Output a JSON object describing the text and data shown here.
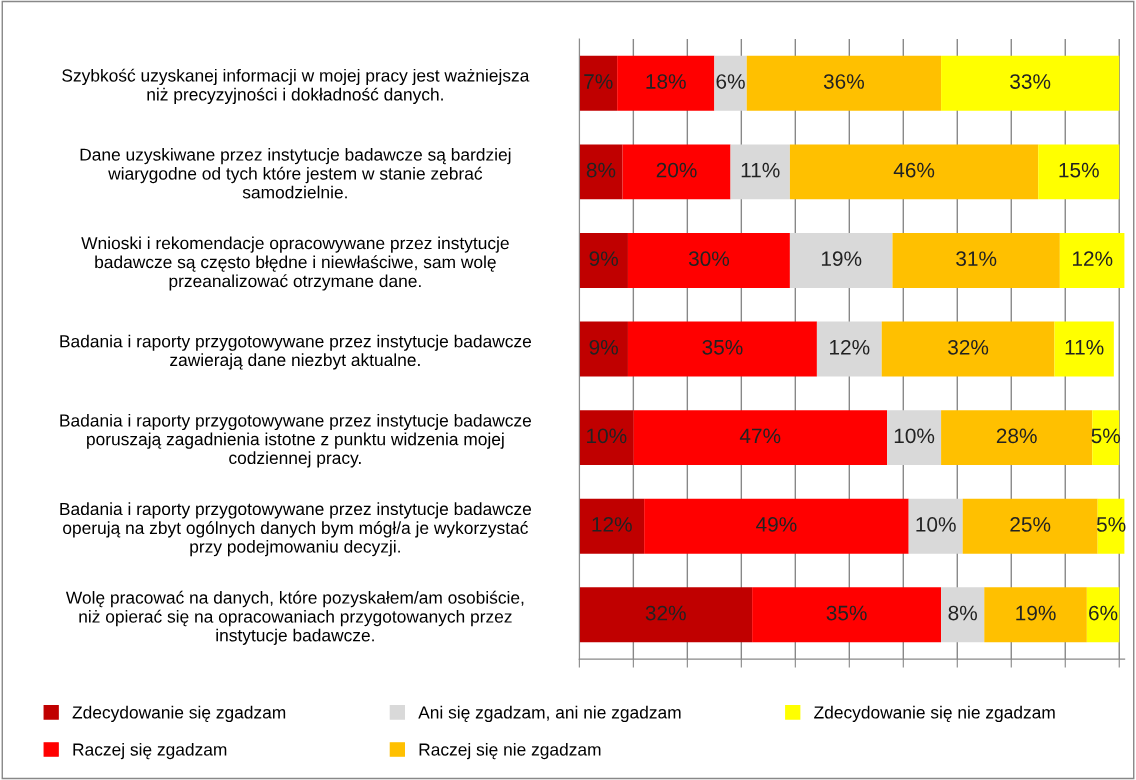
{
  "chart_data": {
    "type": "bar",
    "orientation": "horizontal",
    "stacked": true,
    "categories": [
      "Szybkość uzyskanej informacji w mojej pracy jest ważniejsza\nniż precyzyjności i dokładność danych.",
      "Dane uzyskiwane przez instytucje badawcze są bardziej\nwiarygodne od tych które jestem w stanie zebrać\nsamodzielnie.",
      "Wnioski i rekomendacje opracowywane przez instytucje\nbadawcze są często błędne i niewłaściwe, sam wolę\nprzeanalizować otrzymane dane.",
      "Badania i raporty przygotowywane przez instytucje badawcze\nzawierają dane niezbyt aktualne.",
      "Badania i raporty przygotowywane przez instytucje badawcze\nporuszają zagadnienia istotne z punktu widzenia mojej\ncodziennej pracy.",
      "Badania i raporty przygotowywane przez instytucje badawcze\noperują na zbyt ogólnych danych bym mógł/a je wykorzystać\nprzy podejmowaniu decyzji.",
      "Wolę pracować na danych, które pozyskałem/am osobiście,\nniż opierać się na opracowaniach przygotowanych przez\ninstytucje badawcze."
    ],
    "series": [
      {
        "name": "Zdecydowanie się zgadzam",
        "color": "#c00000",
        "values": [
          7,
          8,
          9,
          9,
          10,
          12,
          32
        ],
        "value_labels": [
          "7%",
          "8%",
          "9%",
          "9%",
          "10%",
          "12%",
          "32%"
        ]
      },
      {
        "name": "Raczej się zgadzam",
        "color": "#ff0000",
        "values": [
          18,
          20,
          30,
          35,
          47,
          49,
          35
        ],
        "value_labels": [
          "18%",
          "20%",
          "30%",
          "35%",
          "47%",
          "49%",
          "35%"
        ]
      },
      {
        "name": "Ani się zgadzam, ani nie zgadzam",
        "color": "#d9d9d9",
        "values": [
          6,
          11,
          19,
          12,
          10,
          10,
          8
        ],
        "value_labels": [
          "6%",
          "11%",
          "19%",
          "12%",
          "10%",
          "10%",
          "8%"
        ]
      },
      {
        "name": "Raczej się nie zgadzam",
        "color": "#ffc000",
        "values": [
          36,
          46,
          31,
          32,
          28,
          25,
          19
        ],
        "value_labels": [
          "36%",
          "46%",
          "31%",
          "32%",
          "28%",
          "25%",
          "19%"
        ]
      },
      {
        "name": "Zdecydowanie się nie zgadzam",
        "color": "#ffff00",
        "values": [
          33,
          15,
          12,
          11,
          5,
          5,
          6
        ],
        "value_labels": [
          "33%",
          "15%",
          "12%",
          "11%",
          "5%",
          "5%",
          "6%"
        ]
      }
    ],
    "xlim": [
      0,
      101
    ],
    "xticks": [
      {
        "value": 0,
        "label": null
      },
      {
        "value": 10,
        "label": null
      },
      {
        "value": 20,
        "label": null
      },
      {
        "value": 30,
        "label": null
      },
      {
        "value": 40,
        "label": null
      },
      {
        "value": 50,
        "label": null
      },
      {
        "value": 60,
        "label": null
      },
      {
        "value": 70,
        "label": null
      },
      {
        "value": 80,
        "label": null
      },
      {
        "value": 90,
        "label": null
      },
      {
        "value": 100,
        "label": null
      }
    ],
    "tick_labels": "y",
    "grid": "x",
    "legend": "bottom"
  }
}
